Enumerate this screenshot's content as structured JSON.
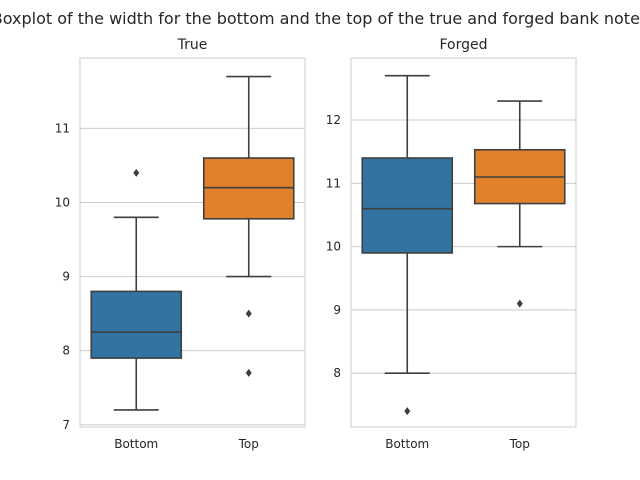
{
  "chart_data": {
    "type": "box",
    "suptitle": "Boxplot of the width for the bottom and the top of the true and forged bank notes",
    "colors": {
      "Bottom": "#3274a1",
      "Top": "#e1812c",
      "line": "#3f3f3f",
      "grid": "#cccccc",
      "frame": "#cccccc"
    },
    "panels": [
      {
        "title": "True",
        "categories": [
          "Bottom",
          "Top"
        ],
        "ylim": [
          6.97,
          11.95
        ],
        "yticks": [
          7,
          8,
          9,
          10,
          11
        ],
        "boxes": [
          {
            "category": "Bottom",
            "whislo": 7.2,
            "q1": 7.9,
            "med": 8.25,
            "q3": 8.8,
            "whishi": 9.8,
            "fliers": [
              10.4
            ]
          },
          {
            "category": "Top",
            "whislo": 9.0,
            "q1": 9.78,
            "med": 10.2,
            "q3": 10.6,
            "whishi": 11.7,
            "fliers": [
              8.5,
              7.7
            ]
          }
        ]
      },
      {
        "title": "Forged",
        "categories": [
          "Bottom",
          "Top"
        ],
        "ylim": [
          7.15,
          12.98
        ],
        "yticks": [
          8,
          9,
          10,
          11,
          12
        ],
        "boxes": [
          {
            "category": "Bottom",
            "whislo": 8.0,
            "q1": 9.9,
            "med": 10.6,
            "q3": 11.4,
            "whishi": 12.7,
            "fliers": [
              7.4
            ]
          },
          {
            "category": "Top",
            "whislo": 10.0,
            "q1": 10.68,
            "med": 11.1,
            "q3": 11.53,
            "whishi": 12.3,
            "fliers": [
              9.1
            ]
          }
        ]
      }
    ]
  }
}
